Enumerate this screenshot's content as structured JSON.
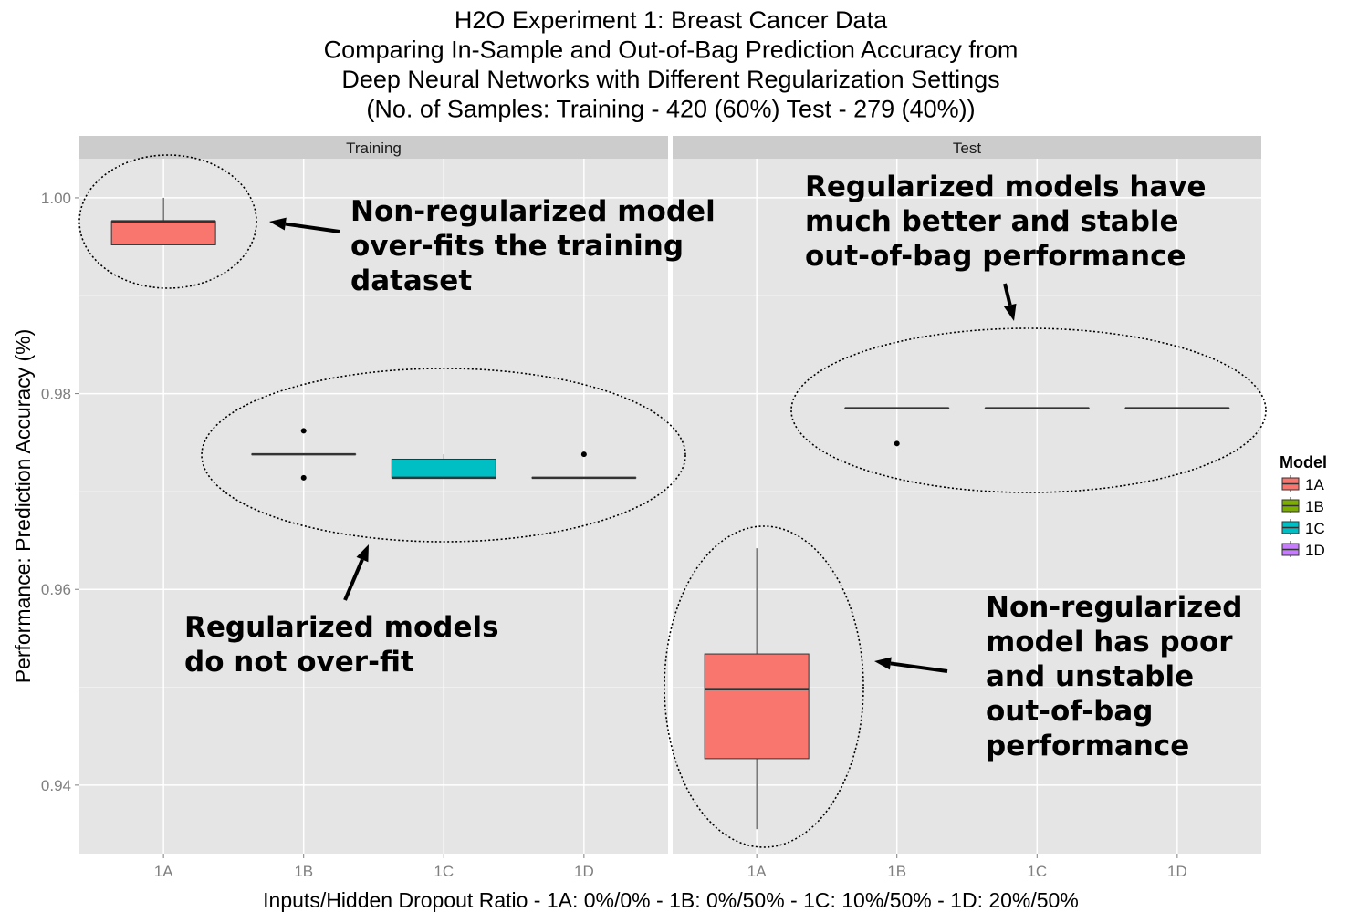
{
  "chart_data": {
    "type": "boxplot",
    "title_lines": [
      "H2O Experiment 1: Breast Cancer Data",
      "Comparing In-Sample and Out-of-Bag Prediction Accuracy from",
      "Deep Neural Networks with Different Regularization Settings",
      "(No. of Samples: Training - 420 (60%)  Test - 279 (40%))"
    ],
    "xlabel": "Inputs/Hidden Dropout Ratio - 1A: 0%/0% - 1B: 0%/50% - 1C: 10%/50% - 1D: 20%/50%",
    "ylabel": "Performance: Prediction Accuracy (%)",
    "ylim": [
      0.933,
      1.004
    ],
    "y_ticks": [
      0.94,
      0.96,
      0.98,
      1.0
    ],
    "y_tick_labels": [
      "0.94",
      "0.96",
      "0.98",
      "1.00"
    ],
    "categories": [
      "1A",
      "1B",
      "1C",
      "1D"
    ],
    "colors": {
      "1A": "#F8766D",
      "1B": "#7CAE00",
      "1C": "#00BFC4",
      "1D": "#C77CFF"
    },
    "legend": {
      "title": "Model",
      "entries": [
        "1A",
        "1B",
        "1C",
        "1D"
      ],
      "position": "right"
    },
    "facets": [
      {
        "name": "Training",
        "boxes": [
          {
            "category": "1A",
            "whisker_low": 0.9952,
            "q1": 0.9952,
            "median": 0.9976,
            "q3": 0.9976,
            "whisker_high": 1.0,
            "outliers": []
          },
          {
            "category": "1B",
            "whisker_low": 0.9738,
            "q1": 0.9738,
            "median": 0.9738,
            "q3": 0.9738,
            "whisker_high": 0.9738,
            "outliers": [
              0.9762,
              0.9714
            ]
          },
          {
            "category": "1C",
            "whisker_low": 0.9714,
            "q1": 0.9714,
            "median": 0.9714,
            "q3": 0.9733,
            "whisker_high": 0.9738,
            "outliers": []
          },
          {
            "category": "1D",
            "whisker_low": 0.9714,
            "q1": 0.9714,
            "median": 0.9714,
            "q3": 0.9714,
            "whisker_high": 0.9714,
            "outliers": [
              0.9738
            ]
          }
        ]
      },
      {
        "name": "Test",
        "boxes": [
          {
            "category": "1A",
            "whisker_low": 0.9355,
            "q1": 0.9427,
            "median": 0.9498,
            "q3": 0.9534,
            "whisker_high": 0.9642,
            "outliers": []
          },
          {
            "category": "1B",
            "whisker_low": 0.9785,
            "q1": 0.9785,
            "median": 0.9785,
            "q3": 0.9785,
            "whisker_high": 0.9785,
            "outliers": [
              0.9749
            ]
          },
          {
            "category": "1C",
            "whisker_low": 0.9785,
            "q1": 0.9785,
            "median": 0.9785,
            "q3": 0.9785,
            "whisker_high": 0.9785,
            "outliers": []
          },
          {
            "category": "1D",
            "whisker_low": 0.9785,
            "q1": 0.9785,
            "median": 0.9785,
            "q3": 0.9785,
            "whisker_high": 0.9785,
            "outliers": []
          }
        ]
      }
    ],
    "annotations": [
      {
        "facet": "Training",
        "lines": [
          "Non-regularized model",
          "over-fits  the  training",
          "dataset"
        ]
      },
      {
        "facet": "Training",
        "lines": [
          "Regularized models",
          "do  not  over-fit"
        ]
      },
      {
        "facet": "Test",
        "lines": [
          "Regularized models have",
          "much better  and stable",
          "out-of-bag  performance"
        ]
      },
      {
        "facet": "Test",
        "lines": [
          "Non-regularized",
          "model has  poor",
          "and  unstable",
          "out-of-bag",
          "performance"
        ]
      }
    ]
  }
}
